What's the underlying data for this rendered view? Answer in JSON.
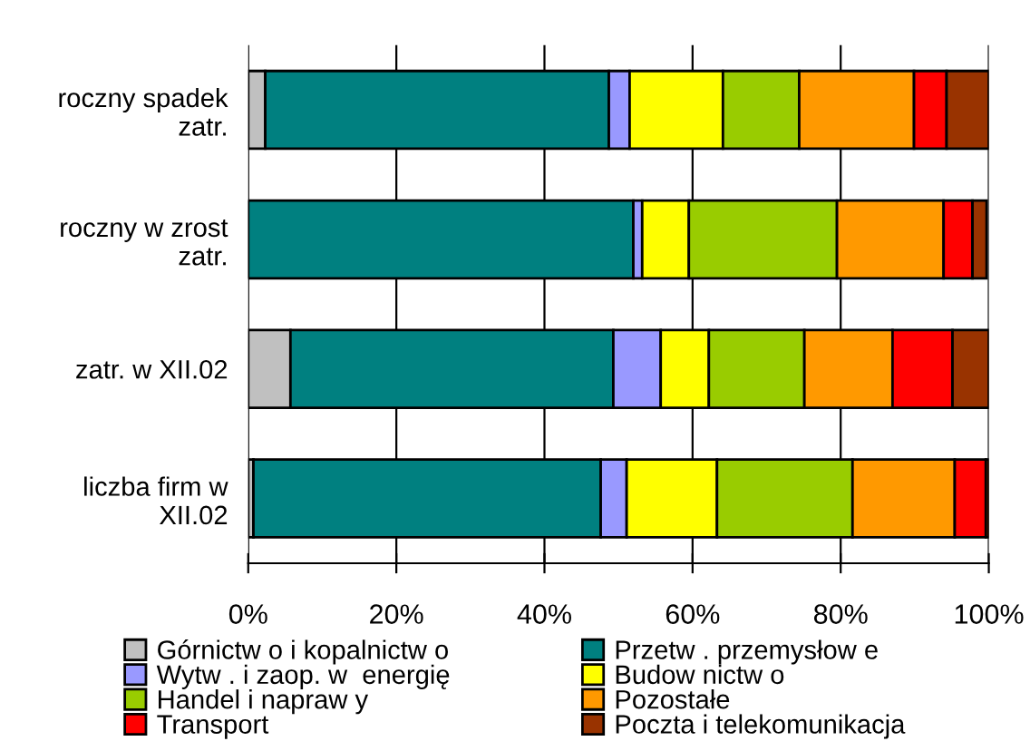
{
  "chart_data": {
    "type": "bar",
    "orientation": "horizontal",
    "stacked": true,
    "categories": [
      "roczny spadek\nzatr.",
      "roczny w zrost\nzatr.",
      "zatr. w XII.02",
      "liczba firm w\nXII.02"
    ],
    "series": [
      {
        "name": "Górnictw o i kopalnictw o",
        "color": "#c0c0c0",
        "values": [
          2.3,
          null,
          5.7,
          0.7
        ]
      },
      {
        "name": "Przetw . przemysłow e",
        "color": "#008080",
        "values": [
          46.4,
          52.0,
          43.6,
          46.9
        ]
      },
      {
        "name": "Wytw . i zaop. w  energię",
        "color": "#9999ff",
        "values": [
          2.8,
          1.2,
          6.4,
          3.5
        ]
      },
      {
        "name": "Budow nictw o",
        "color": "#ffff00",
        "values": [
          12.6,
          6.3,
          6.5,
          12.2
        ]
      },
      {
        "name": "Handel i napraw y",
        "color": "#99cc00",
        "values": [
          10.3,
          20.0,
          12.9,
          18.3
        ]
      },
      {
        "name": "Pozostałe",
        "color": "#ff9900",
        "values": [
          15.5,
          14.4,
          11.9,
          13.8
        ]
      },
      {
        "name": "Transport",
        "color": "#ff0000",
        "values": [
          4.4,
          3.9,
          8.1,
          4.2
        ]
      },
      {
        "name": "Poczta i telekomunikacja",
        "color": "#993300",
        "values": [
          5.7,
          1.9,
          4.9,
          0.4
        ]
      }
    ],
    "xlim": [
      0,
      100
    ],
    "xticks": [
      {
        "value": 0,
        "label": "0%"
      },
      {
        "value": 20,
        "label": "20%"
      },
      {
        "value": 40,
        "label": "40%"
      },
      {
        "value": 60,
        "label": "60%"
      },
      {
        "value": 80,
        "label": "80%"
      },
      {
        "value": 100,
        "label": "100%"
      }
    ],
    "grid": "x",
    "legend": "bottom"
  }
}
